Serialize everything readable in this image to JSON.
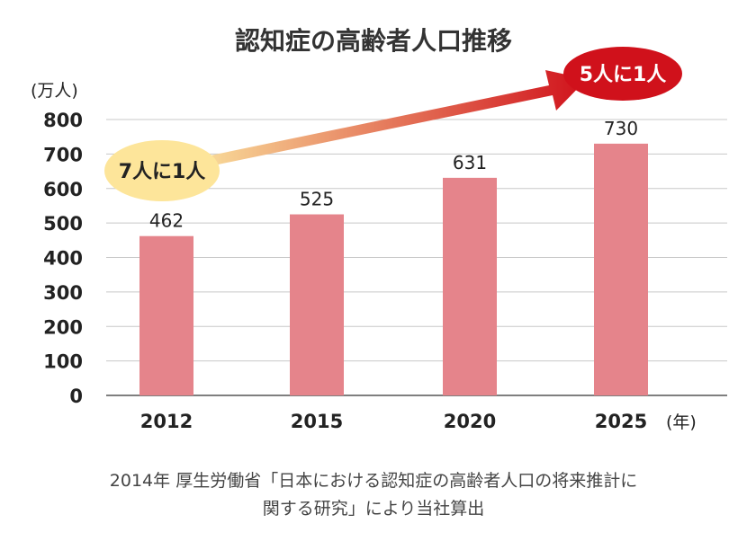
{
  "chart_data": {
    "type": "bar",
    "title": "認知症の高齢者人口推移",
    "ylabel": "(万人)",
    "xlabel": "(年)",
    "categories": [
      "2012",
      "2015",
      "2020",
      "2025"
    ],
    "values": [
      462,
      525,
      631,
      730
    ],
    "data_labels": [
      "462",
      "525",
      "631",
      "730"
    ],
    "yticks": [
      0,
      100,
      200,
      300,
      400,
      500,
      600,
      700,
      800
    ],
    "ylim": [
      0,
      800
    ],
    "grid": true,
    "annotations": {
      "start": "7人に1人",
      "end": "5人に1人"
    }
  },
  "colors": {
    "bar": "#e5848b",
    "grid": "#c8c8c8",
    "start_bubble": "#fde59a",
    "end_bubble": "#d0111b",
    "arrow_start": "#fbe7a0",
    "arrow_end": "#d0111b"
  },
  "source": {
    "line1": "2014年 厚生労働省「日本における認知症の高齢者人口の将来推計に",
    "line2": "関する研究」により当社算出"
  }
}
